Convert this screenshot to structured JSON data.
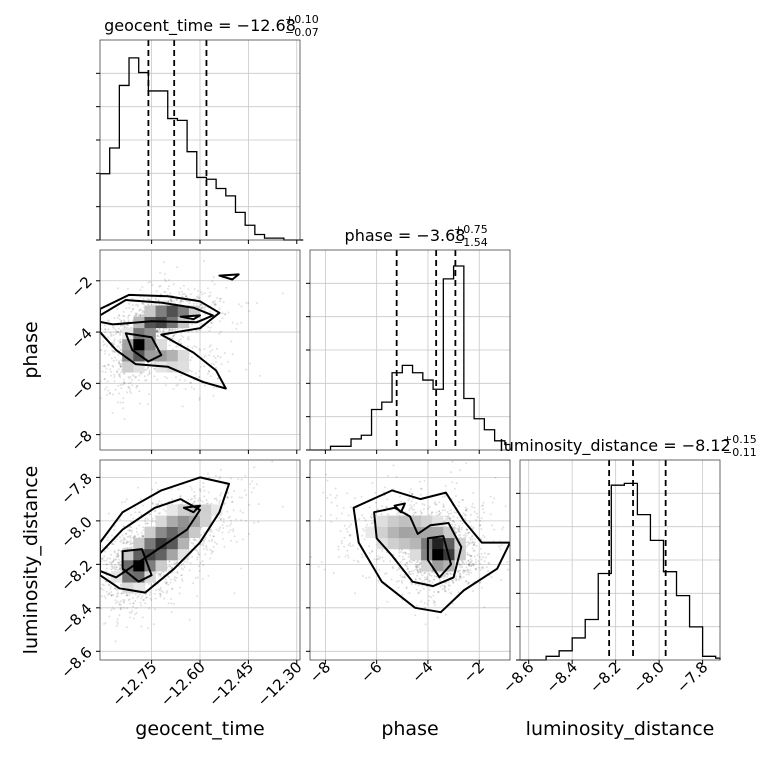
{
  "chart_data": {
    "type": "corner",
    "grid": true,
    "parameters": [
      "geocent_time",
      "phase",
      "luminosity_distance"
    ],
    "titles": [
      {
        "param": "geocent_time",
        "median": "−12.68",
        "plus": "+0.10",
        "minus": "−0.07"
      },
      {
        "param": "phase",
        "median": "−3.68",
        "plus": "+0.75",
        "minus": "−1.54"
      },
      {
        "param": "luminosity_distance",
        "median": "−8.12",
        "plus": "+0.15",
        "minus": "−0.11"
      }
    ],
    "ranges": {
      "geocent_time": [
        -12.91,
        -12.29
      ],
      "phase": [
        -8.6,
        -0.8
      ],
      "luminosity_distance": [
        -8.64,
        -7.72
      ]
    },
    "ticks": {
      "geocent_time": [
        {
          "v": -12.75,
          "label": "−12.75"
        },
        {
          "v": -12.6,
          "label": "−12.60"
        },
        {
          "v": -12.45,
          "label": "−12.45"
        },
        {
          "v": -12.3,
          "label": "−12.30"
        }
      ],
      "phase": [
        {
          "v": -8,
          "label": "−8"
        },
        {
          "v": -6,
          "label": "−6"
        },
        {
          "v": -4,
          "label": "−4"
        },
        {
          "v": -2,
          "label": "−2"
        }
      ],
      "luminosity_distance": [
        {
          "v": -8.6,
          "label": "−8.6"
        },
        {
          "v": -8.4,
          "label": "−8.4"
        },
        {
          "v": -8.2,
          "label": "−8.2"
        },
        {
          "v": -8.0,
          "label": "−8.0"
        },
        {
          "v": -7.8,
          "label": "−7.8"
        }
      ]
    },
    "histograms": {
      "geocent_time": {
        "edges": [
          -12.91,
          -12.88,
          -12.85,
          -12.82,
          -12.79,
          -12.76,
          -12.73,
          -12.7,
          -12.67,
          -12.64,
          -12.61,
          -12.58,
          -12.55,
          -12.52,
          -12.49,
          -12.46,
          -12.43,
          -12.4,
          -12.37,
          -12.34,
          -12.31,
          -12.28
        ],
        "counts": [
          0.36,
          0.5,
          0.84,
          0.99,
          0.91,
          0.81,
          0.81,
          0.66,
          0.65,
          0.48,
          0.34,
          0.33,
          0.28,
          0.24,
          0.15,
          0.08,
          0.03,
          0.01,
          0.01,
          0.0,
          0.0
        ],
        "quantiles": [
          -12.76,
          -12.68,
          -12.58
        ]
      },
      "phase": {
        "edges": [
          -8.6,
          -8.2,
          -7.8,
          -7.4,
          -7.0,
          -6.6,
          -6.2,
          -5.8,
          -5.4,
          -5.0,
          -4.6,
          -4.2,
          -3.8,
          -3.4,
          -3.0,
          -2.6,
          -2.2,
          -1.8,
          -1.4,
          -1.0,
          -0.8
        ],
        "counts": [
          0.0,
          0.0,
          0.02,
          0.02,
          0.06,
          0.08,
          0.22,
          0.26,
          0.42,
          0.46,
          0.42,
          0.38,
          0.33,
          0.93,
          1.0,
          0.28,
          0.17,
          0.11,
          0.05,
          0.03
        ],
        "quantiles": [
          -5.22,
          -3.68,
          -2.93
        ]
      },
      "luminosity_distance": {
        "edges": [
          -8.64,
          -8.58,
          -8.52,
          -8.46,
          -8.4,
          -8.34,
          -8.28,
          -8.22,
          -8.16,
          -8.1,
          -8.04,
          -7.98,
          -7.92,
          -7.86,
          -7.8,
          -7.74,
          -7.72
        ],
        "counts": [
          0.0,
          0.0,
          0.02,
          0.05,
          0.12,
          0.22,
          0.47,
          0.95,
          0.96,
          0.79,
          0.65,
          0.48,
          0.35,
          0.18,
          0.02,
          0.01
        ],
        "quantiles": [
          -8.23,
          -8.12,
          -7.97
        ]
      }
    },
    "joint": {
      "phase_vs_geocent_time": {
        "peaks": [
          {
            "x": -12.7,
            "y": -3.4,
            "sx": 0.05,
            "sy": 0.28,
            "w": 1.0,
            "rho": 0.4
          },
          {
            "x": -12.79,
            "y": -4.5,
            "sx": 0.03,
            "sy": 0.55,
            "w": 0.85,
            "rho": 0.55
          },
          {
            "x": -12.72,
            "y": -4.9,
            "sx": 0.06,
            "sy": 0.35,
            "w": 0.45,
            "rho": -0.55
          }
        ],
        "contours": [
          [
            [
              -12.91,
              -3.35
            ],
            [
              -12.83,
              -2.75
            ],
            [
              -12.72,
              -2.85
            ],
            [
              -12.62,
              -3.05
            ],
            [
              -12.56,
              -3.35
            ],
            [
              -12.61,
              -3.62
            ],
            [
              -12.75,
              -3.58
            ],
            [
              -12.87,
              -3.7
            ],
            [
              -12.91,
              -3.6
            ]
          ],
          [
            [
              -12.91,
              -3.1
            ],
            [
              -12.82,
              -2.55
            ],
            [
              -12.7,
              -2.6
            ],
            [
              -12.6,
              -2.8
            ],
            [
              -12.54,
              -3.25
            ],
            [
              -12.6,
              -3.85
            ],
            [
              -12.72,
              -4.1
            ],
            [
              -12.62,
              -4.8
            ],
            [
              -12.55,
              -5.5
            ],
            [
              -12.52,
              -6.2
            ],
            [
              -12.59,
              -5.95
            ],
            [
              -12.7,
              -5.35
            ],
            [
              -12.8,
              -5.25
            ],
            [
              -12.86,
              -4.7
            ],
            [
              -12.91,
              -4.0
            ]
          ],
          [
            [
              -12.83,
              -4.05
            ],
            [
              -12.75,
              -4.2
            ],
            [
              -12.72,
              -4.9
            ],
            [
              -12.76,
              -5.15
            ],
            [
              -12.81,
              -4.7
            ]
          ],
          [
            [
              -12.66,
              -3.4
            ],
            [
              -12.6,
              -3.35
            ],
            [
              -12.62,
              -3.5
            ]
          ],
          [
            [
              -12.54,
              -1.8
            ],
            [
              -12.48,
              -1.75
            ],
            [
              -12.5,
              -1.95
            ]
          ]
        ]
      },
      "luminosity_distance_vs_geocent_time": {
        "peaks": [
          {
            "x": -12.8,
            "y": -8.22,
            "sx": 0.03,
            "sy": 0.05,
            "w": 1.0,
            "rho": 0.3
          },
          {
            "x": -12.72,
            "y": -8.12,
            "sx": 0.05,
            "sy": 0.06,
            "w": 0.85,
            "rho": 0.4
          },
          {
            "x": -12.64,
            "y": -8.0,
            "sx": 0.06,
            "sy": 0.06,
            "w": 0.45,
            "rho": 0.5
          }
        ],
        "contours": [
          [
            [
              -12.91,
              -8.15
            ],
            [
              -12.84,
              -8.04
            ],
            [
              -12.74,
              -7.94
            ],
            [
              -12.66,
              -7.9
            ],
            [
              -12.6,
              -7.95
            ],
            [
              -12.64,
              -8.04
            ],
            [
              -12.72,
              -8.12
            ],
            [
              -12.8,
              -8.2
            ],
            [
              -12.86,
              -8.26
            ],
            [
              -12.91,
              -8.23
            ]
          ],
          [
            [
              -12.91,
              -8.1
            ],
            [
              -12.84,
              -7.96
            ],
            [
              -12.72,
              -7.86
            ],
            [
              -12.6,
              -7.8
            ],
            [
              -12.51,
              -7.83
            ],
            [
              -12.54,
              -7.96
            ],
            [
              -12.6,
              -8.1
            ],
            [
              -12.68,
              -8.22
            ],
            [
              -12.77,
              -8.33
            ],
            [
              -12.85,
              -8.31
            ],
            [
              -12.91,
              -8.25
            ]
          ],
          [
            [
              -12.84,
              -8.14
            ],
            [
              -12.78,
              -8.13
            ],
            [
              -12.75,
              -8.25
            ],
            [
              -12.79,
              -8.28
            ],
            [
              -12.84,
              -8.22
            ]
          ],
          [
            [
              -12.65,
              -7.94
            ],
            [
              -12.6,
              -7.93
            ],
            [
              -12.62,
              -7.96
            ]
          ]
        ]
      },
      "luminosity_distance_vs_phase": {
        "peaks": [
          {
            "x": -3.5,
            "y": -8.14,
            "sx": 0.45,
            "sy": 0.05,
            "w": 1.0,
            "rho": 0.0
          },
          {
            "x": -4.8,
            "y": -8.05,
            "sx": 0.9,
            "sy": 0.06,
            "w": 0.4,
            "rho": 0.0
          }
        ],
        "contours": [
          [
            [
              -6.1,
              -7.96
            ],
            [
              -5.3,
              -7.94
            ],
            [
              -4.7,
              -7.98
            ],
            [
              -4.4,
              -8.06
            ],
            [
              -3.9,
              -8.02
            ],
            [
              -3.2,
              -8.01
            ],
            [
              -2.7,
              -8.12
            ],
            [
              -3.0,
              -8.26
            ],
            [
              -3.8,
              -8.3
            ],
            [
              -4.6,
              -8.28
            ],
            [
              -5.4,
              -8.16
            ],
            [
              -6.0,
              -8.08
            ]
          ],
          [
            [
              -6.9,
              -7.94
            ],
            [
              -5.4,
              -7.86
            ],
            [
              -4.3,
              -7.9
            ],
            [
              -3.3,
              -7.87
            ],
            [
              -2.6,
              -8.0
            ],
            [
              -1.9,
              -8.1
            ],
            [
              -0.8,
              -8.1
            ],
            [
              -1.3,
              -8.22
            ],
            [
              -2.6,
              -8.32
            ],
            [
              -3.5,
              -8.42
            ],
            [
              -4.5,
              -8.4
            ],
            [
              -5.8,
              -8.28
            ],
            [
              -6.7,
              -8.1
            ]
          ],
          [
            [
              -4.0,
              -8.08
            ],
            [
              -3.4,
              -8.07
            ],
            [
              -3.1,
              -8.2
            ],
            [
              -3.55,
              -8.26
            ],
            [
              -4.0,
              -8.18
            ]
          ],
          [
            [
              -5.3,
              -7.93
            ],
            [
              -4.9,
              -7.92
            ],
            [
              -5.05,
              -7.96
            ]
          ]
        ]
      }
    }
  }
}
